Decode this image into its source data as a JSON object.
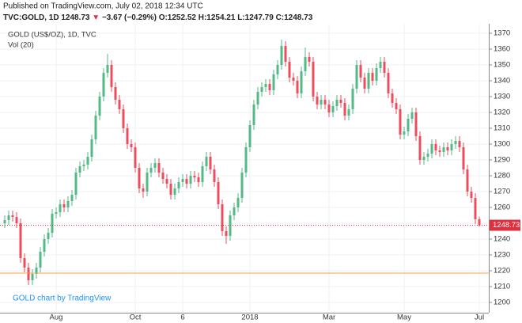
{
  "chart_data": {
    "type": "candlestick",
    "header": {
      "published": "Published on TradingView.com, July 02, 2018 12:34 UTC",
      "symbol": "TVC:GOLD, 1D",
      "last": "1248.73",
      "arrow": "▼",
      "change": "−3.67 (−0.29%)",
      "ohlc": "O:1252.52 H:1254.21 L:1247.79 C:1248.73"
    },
    "title": "GOLD (US$/OZ), 1D, TVC",
    "subtitle": "Vol (20)",
    "annotation": "GOLD chart by TradingView",
    "categories": [
      null,
      null,
      null,
      null,
      null,
      null,
      null,
      null,
      null,
      null,
      null,
      null,
      null,
      "Aug",
      null,
      null,
      null,
      null,
      null,
      null,
      null,
      null,
      null,
      null,
      null,
      null,
      null,
      null,
      null,
      null,
      null,
      null,
      null,
      "Oct",
      null,
      null,
      null,
      null,
      null,
      null,
      null,
      null,
      null,
      null,
      null,
      "6",
      null,
      null,
      null,
      null,
      null,
      null,
      null,
      null,
      null,
      null,
      null,
      null,
      null,
      null,
      null,
      null,
      "2018",
      null,
      null,
      null,
      null,
      null,
      null,
      null,
      null,
      null,
      null,
      null,
      null,
      null,
      null,
      null,
      null,
      null,
      null,
      null,
      "Mar",
      null,
      null,
      null,
      null,
      null,
      null,
      null,
      null,
      null,
      null,
      null,
      null,
      null,
      null,
      null,
      null,
      null,
      null,
      "May",
      null,
      null,
      null,
      null,
      null,
      null,
      null,
      null,
      null,
      null,
      null,
      null,
      null,
      null,
      null,
      null,
      null,
      null,
      "Jul"
    ],
    "open": [
      1250,
      1252,
      1255,
      1254,
      1250,
      1228,
      1222,
      1214,
      1218,
      1222,
      1232,
      1240,
      1244,
      1256,
      1257,
      1262,
      1260,
      1264,
      1268,
      1282,
      1286,
      1287,
      1292,
      1303,
      1318,
      1330,
      1345,
      1350,
      1336,
      1328,
      1322,
      1310,
      1300,
      1298,
      1285,
      1272,
      1270,
      1282,
      1285,
      1288,
      1282,
      1278,
      1275,
      1268,
      1272,
      1276,
      1278,
      1275,
      1280,
      1279,
      1276,
      1286,
      1292,
      1284,
      1276,
      1262,
      1245,
      1242,
      1255,
      1260,
      1266,
      1282,
      1298,
      1312,
      1325,
      1333,
      1336,
      1338,
      1334,
      1344,
      1350,
      1362,
      1352,
      1342,
      1340,
      1332,
      1346,
      1355,
      1352,
      1330,
      1325,
      1328,
      1325,
      1320,
      1324,
      1328,
      1326,
      1318,
      1322,
      1335,
      1350,
      1342,
      1335,
      1345,
      1340,
      1348,
      1352,
      1345,
      1332,
      1326,
      1322,
      1306,
      1308,
      1316,
      1320,
      1305,
      1290,
      1292,
      1294,
      1300,
      1296,
      1295,
      1298,
      1296,
      1300,
      1302,
      1298,
      1284,
      1270,
      1266,
      1252.52
    ],
    "high": [
      1255,
      1258,
      1258,
      1257,
      1253,
      1231,
      1225,
      1221,
      1225,
      1235,
      1243,
      1247,
      1259,
      1260,
      1265,
      1265,
      1267,
      1271,
      1285,
      1289,
      1290,
      1295,
      1306,
      1321,
      1333,
      1348,
      1357,
      1353,
      1339,
      1331,
      1325,
      1313,
      1303,
      1301,
      1288,
      1275,
      1285,
      1288,
      1291,
      1291,
      1285,
      1281,
      1278,
      1275,
      1279,
      1281,
      1281,
      1283,
      1283,
      1282,
      1289,
      1295,
      1295,
      1287,
      1279,
      1265,
      1248,
      1258,
      1263,
      1269,
      1285,
      1301,
      1315,
      1328,
      1336,
      1339,
      1341,
      1341,
      1347,
      1353,
      1366,
      1365,
      1355,
      1345,
      1343,
      1349,
      1361,
      1358,
      1355,
      1333,
      1331,
      1331,
      1328,
      1327,
      1331,
      1331,
      1329,
      1325,
      1338,
      1353,
      1353,
      1345,
      1348,
      1348,
      1351,
      1355,
      1355,
      1348,
      1335,
      1329,
      1325,
      1311,
      1319,
      1323,
      1323,
      1308,
      1295,
      1297,
      1303,
      1303,
      1299,
      1301,
      1301,
      1303,
      1305,
      1305,
      1301,
      1287,
      1273,
      1269,
      1254.21
    ],
    "low": [
      1247,
      1249,
      1251,
      1247,
      1225,
      1219,
      1211,
      1211,
      1215,
      1219,
      1229,
      1237,
      1241,
      1253,
      1254,
      1257,
      1257,
      1261,
      1265,
      1279,
      1283,
      1284,
      1289,
      1300,
      1315,
      1327,
      1342,
      1333,
      1325,
      1319,
      1307,
      1297,
      1295,
      1282,
      1269,
      1266,
      1267,
      1279,
      1282,
      1279,
      1275,
      1272,
      1265,
      1265,
      1269,
      1273,
      1272,
      1272,
      1276,
      1273,
      1273,
      1283,
      1281,
      1273,
      1259,
      1242,
      1237,
      1239,
      1252,
      1257,
      1263,
      1279,
      1295,
      1309,
      1322,
      1330,
      1333,
      1331,
      1331,
      1341,
      1347,
      1349,
      1339,
      1337,
      1329,
      1329,
      1343,
      1349,
      1327,
      1322,
      1322,
      1322,
      1317,
      1317,
      1321,
      1323,
      1315,
      1315,
      1319,
      1332,
      1339,
      1332,
      1332,
      1337,
      1337,
      1345,
      1342,
      1329,
      1323,
      1319,
      1303,
      1303,
      1305,
      1313,
      1302,
      1287,
      1287,
      1289,
      1291,
      1293,
      1292,
      1292,
      1293,
      1293,
      1297,
      1295,
      1281,
      1267,
      1263,
      1249.5,
      1247.79
    ],
    "close": [
      1252,
      1255,
      1254,
      1250,
      1228,
      1222,
      1214,
      1218,
      1222,
      1232,
      1240,
      1244,
      1256,
      1257,
      1262,
      1260,
      1264,
      1268,
      1282,
      1286,
      1287,
      1292,
      1303,
      1318,
      1330,
      1345,
      1350,
      1336,
      1328,
      1322,
      1310,
      1300,
      1298,
      1285,
      1272,
      1270,
      1282,
      1285,
      1288,
      1282,
      1278,
      1275,
      1268,
      1272,
      1276,
      1278,
      1275,
      1280,
      1279,
      1276,
      1286,
      1292,
      1284,
      1276,
      1262,
      1245,
      1242,
      1255,
      1260,
      1266,
      1282,
      1298,
      1312,
      1325,
      1333,
      1336,
      1338,
      1334,
      1344,
      1350,
      1362,
      1352,
      1342,
      1340,
      1332,
      1346,
      1355,
      1352,
      1330,
      1325,
      1328,
      1325,
      1320,
      1324,
      1328,
      1326,
      1318,
      1322,
      1335,
      1350,
      1342,
      1335,
      1345,
      1340,
      1348,
      1352,
      1345,
      1332,
      1326,
      1322,
      1306,
      1308,
      1316,
      1320,
      1305,
      1290,
      1292,
      1294,
      1300,
      1296,
      1295,
      1298,
      1296,
      1300,
      1302,
      1298,
      1284,
      1270,
      1266,
      1252.52,
      1248.73
    ],
    "up_color": "#53b987",
    "down_color": "#eb4d5c",
    "last_price": 1248.73,
    "last_price_color": "#e0303f",
    "support_line": 1218.5,
    "support_color": "#f5a04b",
    "ylim": [
      1193.5,
      1373.5
    ],
    "yticks": [
      1200,
      1210,
      1220,
      1230,
      1240,
      1250,
      1260,
      1270,
      1280,
      1290,
      1300,
      1310,
      1320,
      1330,
      1340,
      1350,
      1360,
      1370
    ],
    "grid": true
  }
}
